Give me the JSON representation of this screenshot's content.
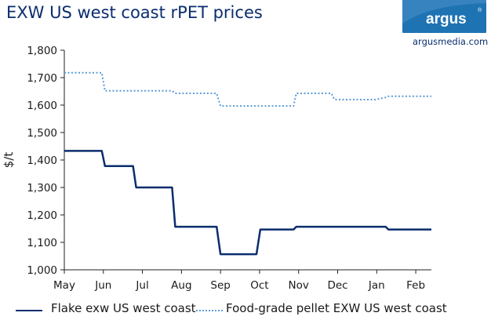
{
  "brand": {
    "logo_text": "argus",
    "url_text": "argusmedia.com",
    "logo_bg_color": "#1e73b3",
    "logo_text_color": "#ffffff"
  },
  "chart_data": {
    "type": "line",
    "title": "EXW US west coast rPET prices",
    "xlabel": "",
    "ylabel": "$/t",
    "ylim": [
      1000,
      1800
    ],
    "yticks": [
      1000,
      1100,
      1200,
      1300,
      1400,
      1500,
      1600,
      1700,
      1800
    ],
    "ytick_labels": [
      "1,000",
      "1,100",
      "1,200",
      "1,300",
      "1,400",
      "1,500",
      "1,600",
      "1,700",
      "1,800"
    ],
    "xlim": [
      0,
      9.4
    ],
    "xticks": [
      0,
      1,
      2,
      3,
      4,
      5,
      6,
      7,
      8,
      9
    ],
    "xtick_labels": [
      "May",
      "Jun",
      "Jul",
      "Aug",
      "Sep",
      "Oct",
      "Nov",
      "Dec",
      "Jan",
      "Feb"
    ],
    "legend_position": "bottom",
    "series": [
      {
        "name": "Flake exw US west coast",
        "color": "#0a2d6e",
        "style": "solid",
        "x": [
          0,
          0.96,
          1.04,
          1.76,
          1.84,
          2.76,
          2.84,
          3.2,
          3.82,
          3.9,
          4.0,
          4.92,
          5.02,
          5.36,
          5.87,
          5.94,
          8.23,
          8.3,
          9.4
        ],
        "y": [
          1433,
          1433,
          1378,
          1378,
          1300,
          1300,
          1157,
          1157,
          1157,
          1157,
          1057,
          1057,
          1147,
          1147,
          1147,
          1157,
          1157,
          1147,
          1147
        ]
      },
      {
        "name": "Food-grade pellet EXW US west coast",
        "color": "#5b9bd5",
        "style": "dotted",
        "x": [
          0,
          0.96,
          1.04,
          1.76,
          2.76,
          2.84,
          3.82,
          3.9,
          4.0,
          5.36,
          5.87,
          5.94,
          6.84,
          6.92,
          7.97,
          8.23,
          8.3,
          9.4
        ],
        "y": [
          1718,
          1718,
          1652,
          1652,
          1652,
          1643,
          1643,
          1643,
          1597,
          1597,
          1597,
          1643,
          1643,
          1620,
          1620,
          1628,
          1632,
          1632
        ]
      }
    ]
  }
}
